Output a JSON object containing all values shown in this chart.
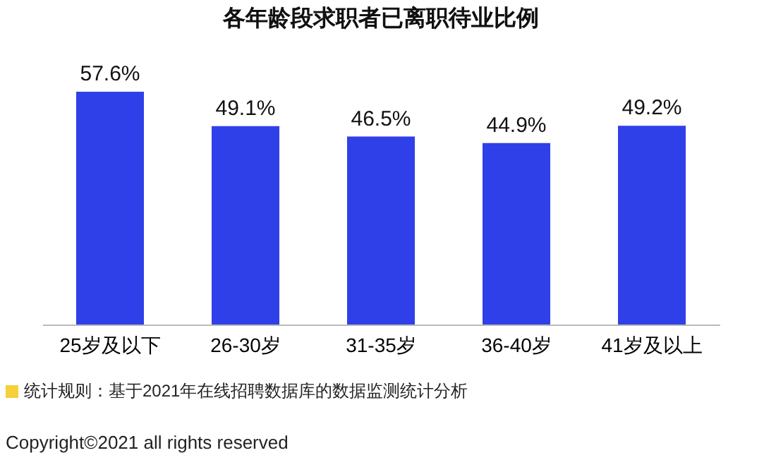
{
  "chart_data": {
    "type": "bar",
    "title": "各年龄段求职者已离职待业比例",
    "categories": [
      "25岁及以下",
      "26-30岁",
      "31-35岁",
      "36-40岁",
      "41岁及以上"
    ],
    "series": [
      {
        "color": "#3040e8",
        "values": [
          57.6,
          49.1,
          46.5,
          44.9,
          49.2
        ],
        "value_labels": [
          "57.6%",
          "49.1%",
          "46.5%",
          "44.9%",
          "49.2%"
        ]
      }
    ],
    "annotations": [
      "统计规则：基于2021年在线招聘数据库的数据监测统计分析",
      "Copyright©2021 all rights reserved"
    ]
  }
}
